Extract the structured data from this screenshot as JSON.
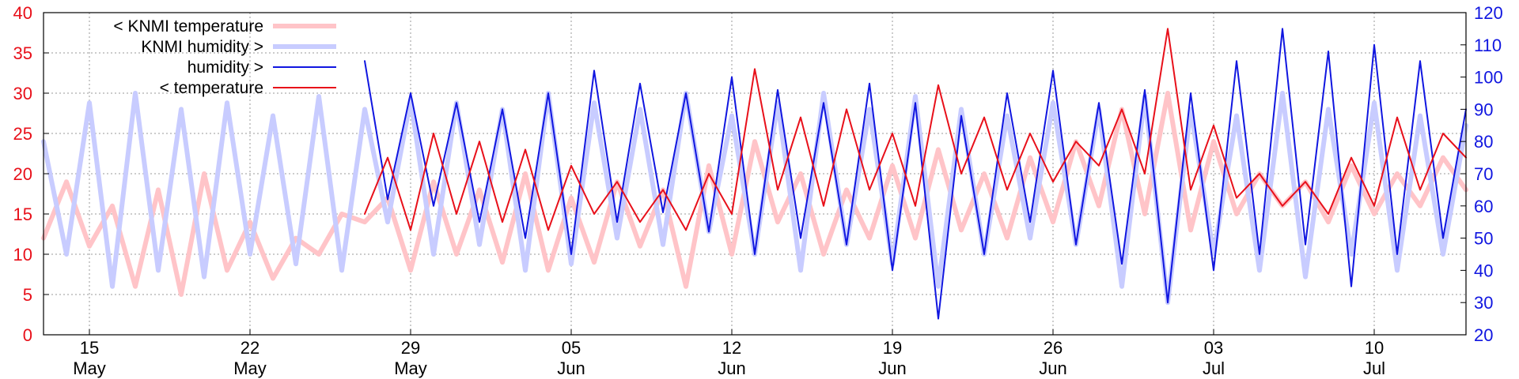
{
  "chart_data": {
    "type": "line",
    "title": "",
    "xlabel": "",
    "ylabel_left": "",
    "ylabel_right": "",
    "x_axis": {
      "type": "date",
      "range": [
        "2011-05-13",
        "2011-07-14"
      ],
      "ticks": [
        {
          "date": "2011-05-15",
          "day": "15",
          "month": "May"
        },
        {
          "date": "2011-05-22",
          "day": "22",
          "month": "May"
        },
        {
          "date": "2011-05-29",
          "day": "29",
          "month": "May"
        },
        {
          "date": "2011-06-05",
          "day": "05",
          "month": "Jun"
        },
        {
          "date": "2011-06-12",
          "day": "12",
          "month": "Jun"
        },
        {
          "date": "2011-06-19",
          "day": "19",
          "month": "Jun"
        },
        {
          "date": "2011-06-26",
          "day": "26",
          "month": "Jun"
        },
        {
          "date": "2011-07-03",
          "day": "03",
          "month": "Jul"
        },
        {
          "date": "2011-07-10",
          "day": "10",
          "month": "Jul"
        }
      ]
    },
    "y_left": {
      "range": [
        0,
        40
      ],
      "ticks": [
        "0",
        "5",
        "10",
        "15",
        "20",
        "25",
        "30",
        "35",
        "40"
      ],
      "color": "#e8101a"
    },
    "y_right": {
      "range": [
        20,
        120
      ],
      "ticks": [
        "20",
        "30",
        "40",
        "50",
        "60",
        "70",
        "80",
        "90",
        "100",
        "110",
        "120"
      ],
      "color": "#1016e0"
    },
    "grid": true,
    "legend_position": "top-left",
    "series": [
      {
        "name": "< KNMI temperature",
        "axis": "left",
        "color": "#ffc4c8",
        "line_style": "thick",
        "x": [
          "2011-05-13",
          "2011-05-14",
          "2011-05-15",
          "2011-05-16",
          "2011-05-17",
          "2011-05-18",
          "2011-05-19",
          "2011-05-20",
          "2011-05-21",
          "2011-05-22",
          "2011-05-23",
          "2011-05-24",
          "2011-05-25",
          "2011-05-26",
          "2011-05-27",
          "2011-05-28",
          "2011-05-29",
          "2011-05-30",
          "2011-05-31",
          "2011-06-01",
          "2011-06-02",
          "2011-06-03",
          "2011-06-04",
          "2011-06-05",
          "2011-06-06",
          "2011-06-07",
          "2011-06-08",
          "2011-06-09",
          "2011-06-10",
          "2011-06-11",
          "2011-06-12",
          "2011-06-13",
          "2011-06-14",
          "2011-06-15",
          "2011-06-16",
          "2011-06-17",
          "2011-06-18",
          "2011-06-19",
          "2011-06-20",
          "2011-06-21",
          "2011-06-22",
          "2011-06-23",
          "2011-06-24",
          "2011-06-25",
          "2011-06-26",
          "2011-06-27",
          "2011-06-28",
          "2011-06-29",
          "2011-06-30",
          "2011-07-01",
          "2011-07-02",
          "2011-07-03",
          "2011-07-04",
          "2011-07-05",
          "2011-07-06",
          "2011-07-07",
          "2011-07-08",
          "2011-07-09",
          "2011-07-10",
          "2011-07-11",
          "2011-07-12",
          "2011-07-13",
          "2011-07-14"
        ],
        "values": [
          12,
          19,
          11,
          16,
          6,
          18,
          5,
          20,
          8,
          14,
          7,
          12,
          10,
          15,
          14,
          17,
          8,
          19,
          10,
          18,
          9,
          20,
          8,
          17,
          9,
          19,
          11,
          18,
          6,
          21,
          10,
          24,
          14,
          20,
          10,
          18,
          12,
          21,
          12,
          23,
          13,
          20,
          12,
          22,
          14,
          24,
          16,
          28,
          15,
          30,
          13,
          24,
          15,
          20,
          16,
          19,
          14,
          21,
          15,
          20,
          16,
          22,
          18
        ]
      },
      {
        "name": "KNMI humidity >",
        "axis": "right",
        "color": "#c8ccff",
        "line_style": "thick",
        "x": [
          "2011-05-13",
          "2011-05-14",
          "2011-05-15",
          "2011-05-16",
          "2011-05-17",
          "2011-05-18",
          "2011-05-19",
          "2011-05-20",
          "2011-05-21",
          "2011-05-22",
          "2011-05-23",
          "2011-05-24",
          "2011-05-25",
          "2011-05-26",
          "2011-05-27",
          "2011-05-28",
          "2011-05-29",
          "2011-05-30",
          "2011-05-31",
          "2011-06-01",
          "2011-06-02",
          "2011-06-03",
          "2011-06-04",
          "2011-06-05",
          "2011-06-06",
          "2011-06-07",
          "2011-06-08",
          "2011-06-09",
          "2011-06-10",
          "2011-06-11",
          "2011-06-12",
          "2011-06-13",
          "2011-06-14",
          "2011-06-15",
          "2011-06-16",
          "2011-06-17",
          "2011-06-18",
          "2011-06-19",
          "2011-06-20",
          "2011-06-21",
          "2011-06-22",
          "2011-06-23",
          "2011-06-24",
          "2011-06-25",
          "2011-06-26",
          "2011-06-27",
          "2011-06-28",
          "2011-06-29",
          "2011-06-30",
          "2011-07-01",
          "2011-07-02",
          "2011-07-03",
          "2011-07-04",
          "2011-07-05",
          "2011-07-06",
          "2011-07-07",
          "2011-07-08",
          "2011-07-09",
          "2011-07-10",
          "2011-07-11",
          "2011-07-12",
          "2011-07-13",
          "2011-07-14"
        ],
        "values": [
          80,
          45,
          92,
          35,
          95,
          40,
          90,
          38,
          92,
          45,
          88,
          42,
          94,
          40,
          90,
          55,
          93,
          45,
          92,
          48,
          90,
          40,
          95,
          42,
          92,
          50,
          90,
          48,
          95,
          52,
          88,
          45,
          92,
          40,
          95,
          48,
          90,
          42,
          94,
          35,
          90,
          45,
          88,
          50,
          92,
          48,
          90,
          35,
          94,
          30,
          90,
          45,
          88,
          40,
          95,
          38,
          90,
          45,
          92,
          40,
          88,
          45,
          85
        ]
      },
      {
        "name": "humidity >",
        "axis": "right",
        "color": "#1016e0",
        "line_style": "thin",
        "x": [
          "2011-05-27",
          "2011-05-28",
          "2011-05-29",
          "2011-05-30",
          "2011-05-31",
          "2011-06-01",
          "2011-06-02",
          "2011-06-03",
          "2011-06-04",
          "2011-06-05",
          "2011-06-06",
          "2011-06-07",
          "2011-06-08",
          "2011-06-09",
          "2011-06-10",
          "2011-06-11",
          "2011-06-12",
          "2011-06-13",
          "2011-06-14",
          "2011-06-15",
          "2011-06-16",
          "2011-06-17",
          "2011-06-18",
          "2011-06-19",
          "2011-06-20",
          "2011-06-21",
          "2011-06-22",
          "2011-06-23",
          "2011-06-24",
          "2011-06-25",
          "2011-06-26",
          "2011-06-27",
          "2011-06-28",
          "2011-06-29",
          "2011-06-30",
          "2011-07-01",
          "2011-07-02",
          "2011-07-03",
          "2011-07-04",
          "2011-07-05",
          "2011-07-06",
          "2011-07-07",
          "2011-07-08",
          "2011-07-09",
          "2011-07-10",
          "2011-07-11",
          "2011-07-12",
          "2011-07-13",
          "2011-07-14"
        ],
        "values": [
          105,
          62,
          95,
          60,
          92,
          55,
          90,
          50,
          95,
          45,
          102,
          55,
          98,
          58,
          95,
          52,
          100,
          45,
          96,
          50,
          92,
          48,
          98,
          40,
          92,
          25,
          88,
          45,
          95,
          55,
          102,
          48,
          92,
          42,
          96,
          30,
          95,
          40,
          105,
          45,
          115,
          48,
          108,
          35,
          110,
          45,
          105,
          50,
          90
        ]
      },
      {
        "name": "< temperature",
        "axis": "left",
        "color": "#e8101a",
        "line_style": "thin",
        "x": [
          "2011-05-27",
          "2011-05-28",
          "2011-05-29",
          "2011-05-30",
          "2011-05-31",
          "2011-06-01",
          "2011-06-02",
          "2011-06-03",
          "2011-06-04",
          "2011-06-05",
          "2011-06-06",
          "2011-06-07",
          "2011-06-08",
          "2011-06-09",
          "2011-06-10",
          "2011-06-11",
          "2011-06-12",
          "2011-06-13",
          "2011-06-14",
          "2011-06-15",
          "2011-06-16",
          "2011-06-17",
          "2011-06-18",
          "2011-06-19",
          "2011-06-20",
          "2011-06-21",
          "2011-06-22",
          "2011-06-23",
          "2011-06-24",
          "2011-06-25",
          "2011-06-26",
          "2011-06-27",
          "2011-06-28",
          "2011-06-29",
          "2011-06-30",
          "2011-07-01",
          "2011-07-02",
          "2011-07-03",
          "2011-07-04",
          "2011-07-05",
          "2011-07-06",
          "2011-07-07",
          "2011-07-08",
          "2011-07-09",
          "2011-07-10",
          "2011-07-11",
          "2011-07-12",
          "2011-07-13",
          "2011-07-14"
        ],
        "values": [
          15,
          22,
          13,
          25,
          15,
          24,
          14,
          23,
          13,
          21,
          15,
          19,
          14,
          18,
          13,
          20,
          15,
          33,
          18,
          27,
          16,
          28,
          18,
          25,
          16,
          31,
          20,
          27,
          18,
          25,
          19,
          24,
          21,
          28,
          20,
          38,
          18,
          26,
          17,
          20,
          16,
          19,
          15,
          22,
          16,
          27,
          18,
          25,
          22
        ]
      }
    ]
  }
}
